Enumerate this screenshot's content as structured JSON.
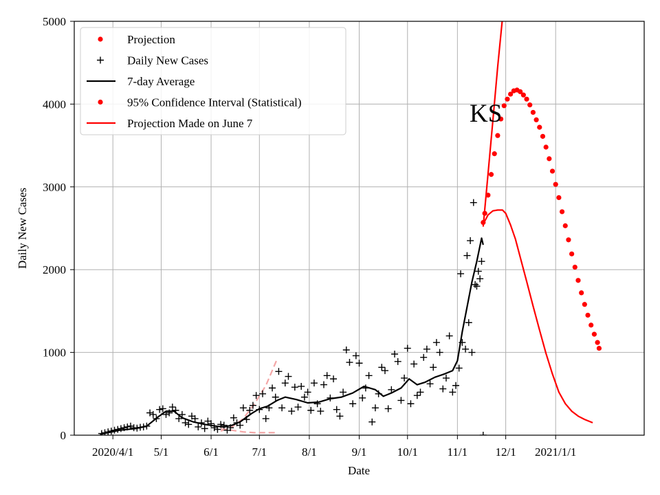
{
  "chart_data": {
    "type": "line",
    "title": "",
    "annotation": "KS",
    "xlabel": "Date",
    "ylabel": "Daily New Cases",
    "ylim": [
      0,
      5000
    ],
    "xlim": [
      "2020-03-08",
      "2021-02-25"
    ],
    "grid": true,
    "legend_position": "upper-left",
    "x_ticks": [
      {
        "date": "2020-04-01",
        "label": "2020/4/1"
      },
      {
        "date": "2020-05-01",
        "label": "5/1"
      },
      {
        "date": "2020-06-01",
        "label": "6/1"
      },
      {
        "date": "2020-07-01",
        "label": "7/1"
      },
      {
        "date": "2020-08-01",
        "label": "8/1"
      },
      {
        "date": "2020-09-01",
        "label": "9/1"
      },
      {
        "date": "2020-10-01",
        "label": "10/1"
      },
      {
        "date": "2020-11-01",
        "label": "11/1"
      },
      {
        "date": "2020-12-01",
        "label": "12/1"
      },
      {
        "date": "2021-01-01",
        "label": "2021/1/1"
      }
    ],
    "y_ticks": [
      0,
      1000,
      2000,
      3000,
      4000,
      5000
    ],
    "legend": [
      {
        "label": "Projection",
        "marker": "dot",
        "color": "#ff0000"
      },
      {
        "label": "Daily New Cases",
        "marker": "plus",
        "color": "#000000"
      },
      {
        "label": "7-day Average",
        "marker": "line",
        "color": "#000000"
      },
      {
        "label": "95% Confidence Interval (Statistical)",
        "marker": "dot",
        "color": "#ff0000"
      },
      {
        "label": "Projection Made on June 7",
        "marker": "line",
        "color": "#ff0000"
      }
    ],
    "series": [
      {
        "name": "Daily New Cases",
        "style": "plus",
        "color": "#000000",
        "points": [
          [
            "2020-03-25",
            20
          ],
          [
            "2020-03-27",
            30
          ],
          [
            "2020-03-29",
            40
          ],
          [
            "2020-03-31",
            50
          ],
          [
            "2020-04-02",
            60
          ],
          [
            "2020-04-04",
            70
          ],
          [
            "2020-04-06",
            80
          ],
          [
            "2020-04-08",
            90
          ],
          [
            "2020-04-10",
            100
          ],
          [
            "2020-04-12",
            110
          ],
          [
            "2020-04-14",
            90
          ],
          [
            "2020-04-16",
            85
          ],
          [
            "2020-04-18",
            95
          ],
          [
            "2020-04-20",
            100
          ],
          [
            "2020-04-22",
            110
          ],
          [
            "2020-04-24",
            270
          ],
          [
            "2020-04-26",
            250
          ],
          [
            "2020-04-28",
            200
          ],
          [
            "2020-04-30",
            310
          ],
          [
            "2020-05-02",
            320
          ],
          [
            "2020-05-04",
            250
          ],
          [
            "2020-05-06",
            270
          ],
          [
            "2020-05-08",
            340
          ],
          [
            "2020-05-10",
            300
          ],
          [
            "2020-05-12",
            200
          ],
          [
            "2020-05-14",
            250
          ],
          [
            "2020-05-16",
            150
          ],
          [
            "2020-05-18",
            130
          ],
          [
            "2020-05-20",
            230
          ],
          [
            "2020-05-22",
            200
          ],
          [
            "2020-05-24",
            100
          ],
          [
            "2020-05-26",
            150
          ],
          [
            "2020-05-28",
            80
          ],
          [
            "2020-05-30",
            170
          ],
          [
            "2020-06-01",
            140
          ],
          [
            "2020-06-03",
            90
          ],
          [
            "2020-06-05",
            70
          ],
          [
            "2020-06-07",
            130
          ],
          [
            "2020-06-09",
            120
          ],
          [
            "2020-06-11",
            60
          ],
          [
            "2020-06-13",
            90
          ],
          [
            "2020-06-15",
            210
          ],
          [
            "2020-06-17",
            150
          ],
          [
            "2020-06-19",
            120
          ],
          [
            "2020-06-21",
            330
          ],
          [
            "2020-06-23",
            190
          ],
          [
            "2020-06-25",
            300
          ],
          [
            "2020-06-27",
            360
          ],
          [
            "2020-06-29",
            480
          ],
          [
            "2020-07-01",
            310
          ],
          [
            "2020-07-03",
            500
          ],
          [
            "2020-07-05",
            200
          ],
          [
            "2020-07-07",
            330
          ],
          [
            "2020-07-09",
            570
          ],
          [
            "2020-07-11",
            460
          ],
          [
            "2020-07-13",
            770
          ],
          [
            "2020-07-15",
            330
          ],
          [
            "2020-07-17",
            630
          ],
          [
            "2020-07-19",
            710
          ],
          [
            "2020-07-21",
            290
          ],
          [
            "2020-07-23",
            580
          ],
          [
            "2020-07-25",
            340
          ],
          [
            "2020-07-27",
            590
          ],
          [
            "2020-07-29",
            460
          ],
          [
            "2020-07-31",
            520
          ],
          [
            "2020-08-02",
            300
          ],
          [
            "2020-08-04",
            630
          ],
          [
            "2020-08-06",
            380
          ],
          [
            "2020-08-08",
            290
          ],
          [
            "2020-08-10",
            610
          ],
          [
            "2020-08-12",
            720
          ],
          [
            "2020-08-14",
            450
          ],
          [
            "2020-08-16",
            680
          ],
          [
            "2020-08-18",
            310
          ],
          [
            "2020-08-20",
            230
          ],
          [
            "2020-08-22",
            520
          ],
          [
            "2020-08-24",
            1030
          ],
          [
            "2020-08-26",
            880
          ],
          [
            "2020-08-28",
            380
          ],
          [
            "2020-08-30",
            960
          ],
          [
            "2020-09-01",
            870
          ],
          [
            "2020-09-03",
            450
          ],
          [
            "2020-09-05",
            570
          ],
          [
            "2020-09-07",
            720
          ],
          [
            "2020-09-09",
            160
          ],
          [
            "2020-09-11",
            330
          ],
          [
            "2020-09-13",
            500
          ],
          [
            "2020-09-15",
            820
          ],
          [
            "2020-09-17",
            780
          ],
          [
            "2020-09-19",
            320
          ],
          [
            "2020-09-21",
            550
          ],
          [
            "2020-09-23",
            980
          ],
          [
            "2020-09-25",
            890
          ],
          [
            "2020-09-27",
            420
          ],
          [
            "2020-09-29",
            690
          ],
          [
            "2020-10-01",
            1050
          ],
          [
            "2020-10-03",
            380
          ],
          [
            "2020-10-05",
            860
          ],
          [
            "2020-10-07",
            480
          ],
          [
            "2020-10-09",
            520
          ],
          [
            "2020-10-11",
            940
          ],
          [
            "2020-10-13",
            1040
          ],
          [
            "2020-10-15",
            620
          ],
          [
            "2020-10-17",
            820
          ],
          [
            "2020-10-19",
            1120
          ],
          [
            "2020-10-21",
            1000
          ],
          [
            "2020-10-23",
            560
          ],
          [
            "2020-10-25",
            690
          ],
          [
            "2020-10-27",
            1200
          ],
          [
            "2020-10-29",
            520
          ],
          [
            "2020-10-31",
            600
          ],
          [
            "2020-11-02",
            810
          ],
          [
            "2020-11-03",
            1950
          ],
          [
            "2020-11-04",
            1120
          ],
          [
            "2020-11-06",
            1040
          ],
          [
            "2020-11-07",
            2170
          ],
          [
            "2020-11-08",
            1360
          ],
          [
            "2020-11-09",
            2350
          ],
          [
            "2020-11-10",
            1000
          ],
          [
            "2020-11-11",
            2810
          ],
          [
            "2020-11-12",
            1820
          ],
          [
            "2020-11-13",
            1800
          ],
          [
            "2020-11-14",
            1980
          ],
          [
            "2020-11-15",
            1890
          ],
          [
            "2020-11-16",
            2100
          ],
          [
            "2020-11-17",
            0
          ]
        ]
      },
      {
        "name": "7-day Average",
        "style": "line",
        "color": "#000000",
        "points": [
          [
            "2020-03-24",
            10
          ],
          [
            "2020-04-05",
            60
          ],
          [
            "2020-04-15",
            80
          ],
          [
            "2020-04-22",
            110
          ],
          [
            "2020-04-29",
            220
          ],
          [
            "2020-05-04",
            290
          ],
          [
            "2020-05-09",
            290
          ],
          [
            "2020-05-14",
            210
          ],
          [
            "2020-05-21",
            160
          ],
          [
            "2020-05-28",
            130
          ],
          [
            "2020-06-04",
            110
          ],
          [
            "2020-06-09",
            100
          ],
          [
            "2020-06-14",
            120
          ],
          [
            "2020-06-19",
            160
          ],
          [
            "2020-06-26",
            260
          ],
          [
            "2020-07-01",
            320
          ],
          [
            "2020-07-06",
            350
          ],
          [
            "2020-07-12",
            420
          ],
          [
            "2020-07-17",
            460
          ],
          [
            "2020-07-24",
            430
          ],
          [
            "2020-07-31",
            390
          ],
          [
            "2020-08-07",
            400
          ],
          [
            "2020-08-14",
            440
          ],
          [
            "2020-08-21",
            460
          ],
          [
            "2020-08-28",
            510
          ],
          [
            "2020-09-04",
            590
          ],
          [
            "2020-09-11",
            550
          ],
          [
            "2020-09-16",
            470
          ],
          [
            "2020-09-21",
            510
          ],
          [
            "2020-09-27",
            570
          ],
          [
            "2020-10-02",
            680
          ],
          [
            "2020-10-07",
            610
          ],
          [
            "2020-10-12",
            640
          ],
          [
            "2020-10-18",
            700
          ],
          [
            "2020-10-24",
            740
          ],
          [
            "2020-10-29",
            780
          ],
          [
            "2020-11-01",
            900
          ],
          [
            "2020-11-04",
            1250
          ],
          [
            "2020-11-07",
            1550
          ],
          [
            "2020-11-10",
            1850
          ],
          [
            "2020-11-13",
            2100
          ],
          [
            "2020-11-16",
            2380
          ],
          [
            "2020-11-17",
            2300
          ]
        ]
      },
      {
        "name": "95% Confidence Interval (Statistical)",
        "style": "dots",
        "color": "#ff0000",
        "points": [
          [
            "2020-11-17",
            2570
          ],
          [
            "2020-11-18",
            2680
          ],
          [
            "2020-11-20",
            2900
          ],
          [
            "2020-11-22",
            3150
          ],
          [
            "2020-11-24",
            3400
          ],
          [
            "2020-11-26",
            3620
          ],
          [
            "2020-11-28",
            3820
          ],
          [
            "2020-11-30",
            3980
          ],
          [
            "2020-12-02",
            4060
          ],
          [
            "2020-12-04",
            4120
          ],
          [
            "2020-12-06",
            4160
          ],
          [
            "2020-12-08",
            4170
          ],
          [
            "2020-12-10",
            4150
          ],
          [
            "2020-12-12",
            4110
          ],
          [
            "2020-12-14",
            4060
          ],
          [
            "2020-12-16",
            3990
          ],
          [
            "2020-12-18",
            3900
          ],
          [
            "2020-12-20",
            3810
          ],
          [
            "2020-12-22",
            3720
          ],
          [
            "2020-12-24",
            3610
          ],
          [
            "2020-12-26",
            3480
          ],
          [
            "2020-12-28",
            3340
          ],
          [
            "2020-12-30",
            3190
          ],
          [
            "2021-01-01",
            3030
          ],
          [
            "2021-01-03",
            2870
          ],
          [
            "2021-01-05",
            2700
          ],
          [
            "2021-01-07",
            2530
          ],
          [
            "2021-01-09",
            2360
          ],
          [
            "2021-01-11",
            2190
          ],
          [
            "2021-01-13",
            2030
          ],
          [
            "2021-01-15",
            1870
          ],
          [
            "2021-01-17",
            1720
          ],
          [
            "2021-01-19",
            1580
          ],
          [
            "2021-01-21",
            1450
          ],
          [
            "2021-01-23",
            1330
          ],
          [
            "2021-01-25",
            1220
          ],
          [
            "2021-01-27",
            1120
          ],
          [
            "2021-01-28",
            1050
          ]
        ]
      },
      {
        "name": "Projection Made on June 7",
        "style": "line",
        "color": "#ff0000",
        "points": [
          [
            "2020-11-17",
            2550
          ],
          [
            "2020-11-20",
            2660
          ],
          [
            "2020-11-23",
            2710
          ],
          [
            "2020-11-26",
            2720
          ],
          [
            "2020-11-29",
            2720
          ],
          [
            "2020-12-01",
            2680
          ],
          [
            "2020-12-04",
            2540
          ],
          [
            "2020-12-07",
            2370
          ],
          [
            "2020-12-10",
            2150
          ],
          [
            "2020-12-14",
            1860
          ],
          [
            "2020-12-18",
            1560
          ],
          [
            "2020-12-22",
            1270
          ],
          [
            "2020-12-26",
            990
          ],
          [
            "2020-12-30",
            740
          ],
          [
            "2021-01-03",
            520
          ],
          [
            "2021-01-07",
            380
          ],
          [
            "2021-01-11",
            290
          ],
          [
            "2021-01-15",
            230
          ],
          [
            "2021-01-19",
            190
          ],
          [
            "2021-01-24",
            150
          ]
        ]
      },
      {
        "name": "Projection",
        "style": "line",
        "color": "#ff0000",
        "points": [
          [
            "2020-11-17",
            2520
          ],
          [
            "2020-11-20",
            3150
          ],
          [
            "2020-11-23",
            3800
          ],
          [
            "2020-11-26",
            4450
          ],
          [
            "2020-11-29",
            5040
          ]
        ]
      },
      {
        "name": "June 7 upper band",
        "style": "dashed",
        "color": "#f4a6a6",
        "points": [
          [
            "2020-06-07",
            50
          ],
          [
            "2020-06-14",
            100
          ],
          [
            "2020-06-21",
            200
          ],
          [
            "2020-06-28",
            380
          ],
          [
            "2020-07-05",
            600
          ],
          [
            "2020-07-12",
            920
          ]
        ]
      },
      {
        "name": "June 7 lower band",
        "style": "dashed",
        "color": "#f4a6a6",
        "points": [
          [
            "2020-06-07",
            80
          ],
          [
            "2020-06-14",
            60
          ],
          [
            "2020-06-21",
            40
          ],
          [
            "2020-06-28",
            30
          ],
          [
            "2020-07-05",
            30
          ],
          [
            "2020-07-12",
            30
          ]
        ]
      }
    ]
  }
}
